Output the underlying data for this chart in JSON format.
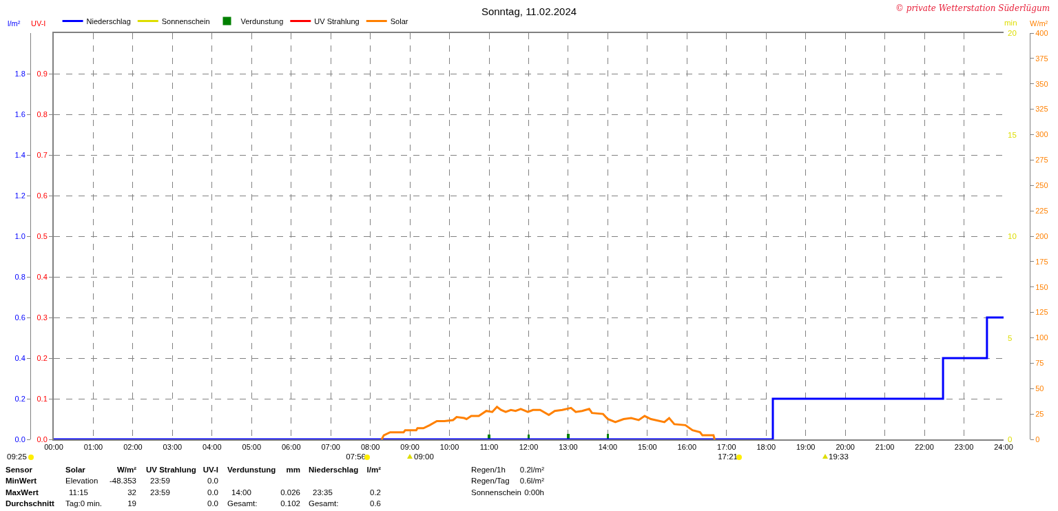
{
  "chart_data": {
    "type": "line",
    "title": "Sonntag, 11.02.2024",
    "ylabel": "l/m²",
    "y2label": "UV-I",
    "y3label": "W/m²",
    "xlim": [
      0,
      24
    ],
    "xticks": [
      {
        "value": 0,
        "label": "00:00"
      },
      {
        "value": 1,
        "label": "01:00"
      },
      {
        "value": 2,
        "label": "02:00"
      },
      {
        "value": 3,
        "label": "03:00"
      },
      {
        "value": 4,
        "label": "04:00"
      },
      {
        "value": 5,
        "label": "05:00"
      },
      {
        "value": 6,
        "label": "06:00"
      },
      {
        "value": 7,
        "label": "07:00"
      },
      {
        "value": 8,
        "label": "08:00"
      },
      {
        "value": 9,
        "label": "09:00"
      },
      {
        "value": 10,
        "label": "10:00"
      },
      {
        "value": 11,
        "label": "11:00"
      },
      {
        "value": 12,
        "label": "12:00"
      },
      {
        "value": 13,
        "label": "13:00"
      },
      {
        "value": 14,
        "label": "14:00"
      },
      {
        "value": 15,
        "label": "15:00"
      },
      {
        "value": 16,
        "label": "16:00"
      },
      {
        "value": 17,
        "label": "17:00"
      },
      {
        "value": 18,
        "label": "18:00"
      },
      {
        "value": 19,
        "label": "19:00"
      },
      {
        "value": 20,
        "label": "20:00"
      },
      {
        "value": 21,
        "label": "21:00"
      },
      {
        "value": 22,
        "label": "22:00"
      },
      {
        "value": 23,
        "label": "23:00"
      },
      {
        "value": 24,
        "label": "24:00"
      }
    ],
    "ylim": [
      0,
      2
    ],
    "yticks": [
      {
        "value": 0,
        "label": "0.0"
      },
      {
        "value": 0.2,
        "label": "0.2"
      },
      {
        "value": 0.4,
        "label": "0.4"
      },
      {
        "value": 0.6,
        "label": "0.6"
      },
      {
        "value": 0.8,
        "label": "0.8"
      },
      {
        "value": 1,
        "label": "1.0"
      },
      {
        "value": 1.2,
        "label": "1.2"
      },
      {
        "value": 1.4,
        "label": "1.4"
      },
      {
        "value": 1.6,
        "label": "1.6"
      },
      {
        "value": 1.8,
        "label": "1.8"
      }
    ],
    "y2lim": [
      0,
      1
    ],
    "y2ticks": [
      {
        "value": 0,
        "label": "0.0"
      },
      0.1,
      0.2,
      0.3,
      0.4,
      0.5,
      0.6,
      0.7,
      0.8,
      0.9
    ],
    "y3lim": [
      0,
      400
    ],
    "y3ticks": [
      0,
      25,
      50,
      75,
      100,
      125,
      150,
      175,
      200,
      225,
      250,
      275,
      300,
      325,
      350,
      375,
      400
    ],
    "grid": true,
    "legend": "top",
    "line_style": "solid",
    "marker": "none",
    "series": [
      {
        "name": "Niederschlag",
        "type": "step",
        "color": "#0000ff",
        "x": [
          0,
          18.17,
          22.47,
          23.58,
          24
        ],
        "values": [
          0,
          0.2,
          0.4,
          0.6,
          0.6
        ]
      },
      {
        "name": "Sonnenschein",
        "color": "#dddd00",
        "values": [
          null
        ]
      },
      {
        "name": "Verdunstung",
        "type": "bar",
        "color": "#008000",
        "x": [
          11,
          12,
          13,
          14
        ],
        "values": [
          0.025,
          0.025,
          0.026,
          0.026
        ]
      },
      {
        "name": "UV Strahlung",
        "color": "#ff0000",
        "axis": "y2",
        "values": [
          null
        ]
      },
      {
        "name": "Solar",
        "color": "#ff8000",
        "axis": "y3",
        "x": [
          8.28,
          8.3,
          8.34,
          8.5,
          8.84,
          8.88,
          9.16,
          9.19,
          9.34,
          9.5,
          9.68,
          9.87,
          10.09,
          10.18,
          10.37,
          10.43,
          10.55,
          10.74,
          10.93,
          11.08,
          11.2,
          11.3,
          11.42,
          11.55,
          11.67,
          11.8,
          11.98,
          12.11,
          12.29,
          12.51,
          12.66,
          12.85,
          13.07,
          13.19,
          13.35,
          13.53,
          13.6,
          13.88,
          14,
          14.19,
          14.4,
          14.59,
          14.78,
          14.93,
          15.09,
          15.43,
          15.55,
          15.68,
          15.96,
          16.14,
          16.33,
          16.39,
          16.67,
          16.7
        ],
        "values": [
          0,
          1,
          4,
          7,
          7,
          9,
          9,
          11,
          11,
          14,
          18,
          18,
          19,
          22,
          21,
          20,
          23,
          23,
          28,
          27,
          32,
          29,
          27,
          29,
          28,
          30,
          27,
          29,
          29,
          24,
          28,
          29,
          31,
          27,
          28,
          30,
          26,
          25,
          20,
          17,
          20,
          21,
          19,
          23,
          20,
          17,
          21,
          15,
          14,
          9,
          7,
          4,
          4,
          0
        ]
      }
    ],
    "annotations": [
      "© private Wetterstation Süderlügum",
      "09:25",
      "min",
      "20",
      "15",
      "10",
      "5",
      "0",
      "07:56",
      "17:21",
      "09:00",
      "19:33",
      "Sensor",
      "Solar",
      "W/m²",
      "UV Strahlung",
      "UV-I",
      "Verdunstung",
      "mm",
      "Niederschlag",
      "l/m²",
      "MinWert",
      "Elevation",
      "-48.353",
      "23:59",
      "0.0",
      "MaxWert",
      "11:15",
      "32",
      "23:59",
      "0.0",
      "14:00",
      "0.026",
      "23:35",
      "0.2",
      "Durchschnitt",
      "Tag:0 min.",
      "19",
      "0.0",
      "Gesamt:",
      "0.102",
      "Gesamt:",
      "0.6",
      "Regen/1h",
      "0.2l/m²",
      "Regen/Tag",
      "0.6l/m²",
      "Sonnenschein",
      "0:00h"
    ]
  }
}
